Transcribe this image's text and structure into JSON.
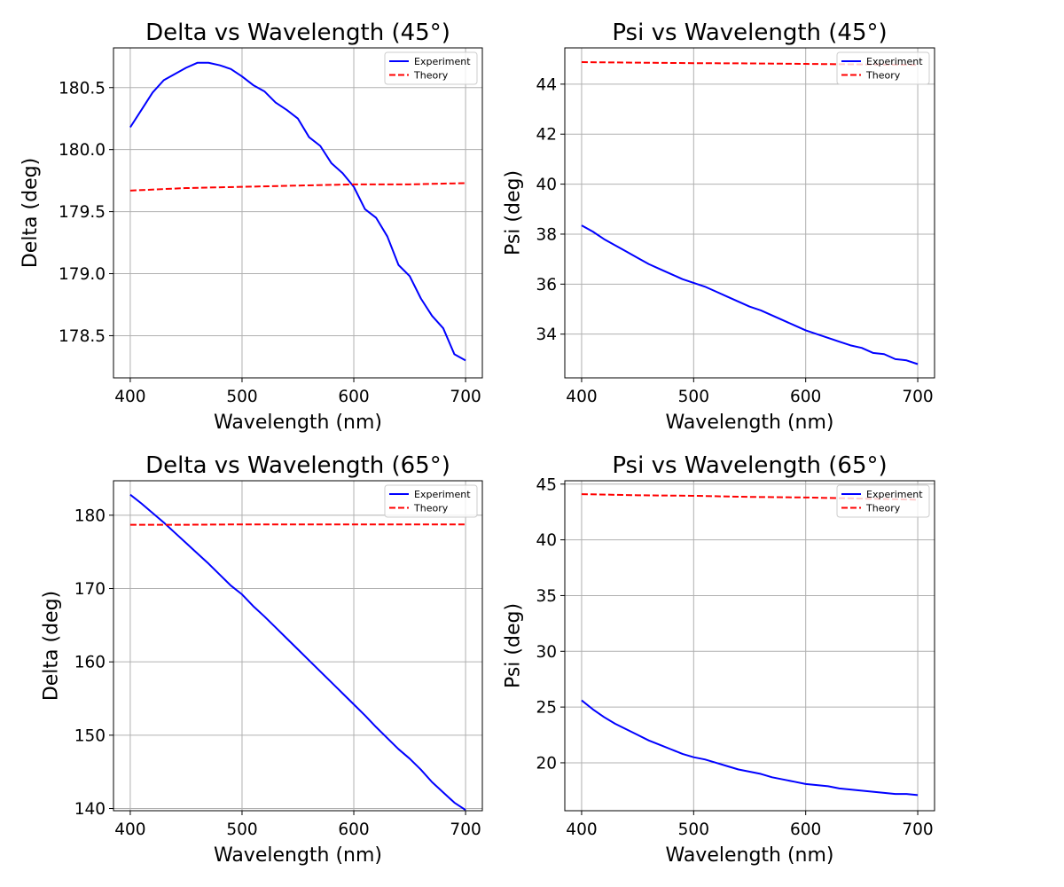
{
  "chart_data": [
    {
      "type": "line",
      "title": "Delta vs Wavelength (45°)",
      "xlabel": "Wavelength (nm)",
      "ylabel": "Delta (deg)",
      "xlim": [
        385,
        715
      ],
      "ylim": [
        178.16,
        180.82
      ],
      "xticks": [
        400,
        500,
        600,
        700
      ],
      "yticks": [
        178.5,
        179.0,
        179.5,
        180.0,
        180.5
      ],
      "ytick_decimals": 1,
      "grid": true,
      "legend": "top-right",
      "series": [
        {
          "name": "Experiment",
          "color": "#0000ff",
          "style": "solid",
          "x": [
            400,
            410,
            420,
            430,
            440,
            450,
            460,
            470,
            480,
            490,
            500,
            510,
            520,
            530,
            540,
            550,
            560,
            570,
            580,
            590,
            600,
            610,
            620,
            630,
            640,
            650,
            660,
            670,
            680,
            690,
            700
          ],
          "y": [
            180.18,
            180.32,
            180.46,
            180.56,
            180.61,
            180.66,
            180.7,
            180.7,
            180.68,
            180.65,
            180.59,
            180.52,
            180.47,
            180.38,
            180.32,
            180.25,
            180.1,
            180.03,
            179.89,
            179.81,
            179.7,
            179.52,
            179.45,
            179.3,
            179.07,
            178.98,
            178.8,
            178.66,
            178.56,
            178.35,
            178.3
          ]
        },
        {
          "name": "Theory",
          "color": "#ff0000",
          "style": "dashed",
          "x": [
            400,
            450,
            500,
            550,
            600,
            650,
            700
          ],
          "y": [
            179.67,
            179.69,
            179.7,
            179.71,
            179.72,
            179.72,
            179.73
          ]
        }
      ]
    },
    {
      "type": "line",
      "title": "Psi vs Wavelength (45°)",
      "xlabel": "Wavelength (nm)",
      "ylabel": "Psi (deg)",
      "xlim": [
        385,
        715
      ],
      "ylim": [
        32.25,
        45.45
      ],
      "xticks": [
        400,
        500,
        600,
        700
      ],
      "yticks": [
        34,
        36,
        38,
        40,
        42,
        44
      ],
      "ytick_decimals": 0,
      "grid": true,
      "legend": "top-right",
      "series": [
        {
          "name": "Experiment",
          "color": "#0000ff",
          "style": "solid",
          "x": [
            400,
            410,
            420,
            430,
            440,
            450,
            460,
            470,
            480,
            490,
            500,
            510,
            520,
            530,
            540,
            550,
            560,
            570,
            580,
            590,
            600,
            610,
            620,
            630,
            640,
            650,
            660,
            670,
            680,
            690,
            700
          ],
          "y": [
            38.35,
            38.1,
            37.8,
            37.55,
            37.3,
            37.05,
            36.8,
            36.6,
            36.4,
            36.2,
            36.05,
            35.9,
            35.7,
            35.5,
            35.3,
            35.1,
            34.95,
            34.75,
            34.55,
            34.35,
            34.15,
            34.0,
            33.85,
            33.7,
            33.55,
            33.45,
            33.25,
            33.2,
            33.0,
            32.95,
            32.8
          ]
        },
        {
          "name": "Theory",
          "color": "#ff0000",
          "style": "dashed",
          "x": [
            400,
            450,
            500,
            550,
            600,
            650,
            700
          ],
          "y": [
            44.88,
            44.86,
            44.84,
            44.83,
            44.81,
            44.79,
            44.77
          ]
        }
      ]
    },
    {
      "type": "line",
      "title": "Delta vs Wavelength (65°)",
      "xlabel": "Wavelength (nm)",
      "ylabel": "Delta (deg)",
      "xlim": [
        385,
        715
      ],
      "ylim": [
        139.7,
        184.7
      ],
      "xticks": [
        400,
        500,
        600,
        700
      ],
      "yticks": [
        140,
        150,
        160,
        170,
        180
      ],
      "ytick_decimals": 0,
      "grid": true,
      "legend": "top-right",
      "series": [
        {
          "name": "Experiment",
          "color": "#0000ff",
          "style": "solid",
          "x": [
            400,
            410,
            420,
            430,
            440,
            450,
            460,
            470,
            480,
            490,
            500,
            510,
            520,
            530,
            540,
            550,
            560,
            570,
            580,
            590,
            600,
            610,
            620,
            630,
            640,
            650,
            660,
            670,
            680,
            690,
            700
          ],
          "y": [
            182.8,
            181.6,
            180.3,
            179.0,
            177.6,
            176.2,
            174.8,
            173.4,
            171.9,
            170.4,
            169.2,
            167.6,
            166.2,
            164.7,
            163.2,
            161.7,
            160.2,
            158.7,
            157.2,
            155.7,
            154.2,
            152.7,
            151.1,
            149.6,
            148.1,
            146.8,
            145.3,
            143.6,
            142.2,
            140.8,
            139.8
          ]
        },
        {
          "name": "Theory",
          "color": "#ff0000",
          "style": "dashed",
          "x": [
            400,
            450,
            500,
            550,
            600,
            650,
            700
          ],
          "y": [
            178.7,
            178.7,
            178.75,
            178.75,
            178.75,
            178.75,
            178.75
          ]
        }
      ]
    },
    {
      "type": "line",
      "title": "Psi vs Wavelength (65°)",
      "xlabel": "Wavelength (nm)",
      "ylabel": "Psi (deg)",
      "xlim": [
        385,
        715
      ],
      "ylim": [
        15.7,
        45.3
      ],
      "xticks": [
        400,
        500,
        600,
        700
      ],
      "yticks": [
        20,
        25,
        30,
        35,
        40,
        45
      ],
      "ytick_decimals": 0,
      "grid": true,
      "legend": "top-right",
      "series": [
        {
          "name": "Experiment",
          "color": "#0000ff",
          "style": "solid",
          "x": [
            400,
            410,
            420,
            430,
            440,
            450,
            460,
            470,
            480,
            490,
            500,
            510,
            520,
            530,
            540,
            550,
            560,
            570,
            580,
            590,
            600,
            610,
            620,
            630,
            640,
            650,
            660,
            670,
            680,
            690,
            700
          ],
          "y": [
            25.6,
            24.8,
            24.1,
            23.5,
            23.0,
            22.5,
            22.0,
            21.6,
            21.2,
            20.8,
            20.5,
            20.3,
            20.0,
            19.7,
            19.4,
            19.2,
            19.0,
            18.7,
            18.5,
            18.3,
            18.1,
            18.0,
            17.9,
            17.7,
            17.6,
            17.5,
            17.4,
            17.3,
            17.2,
            17.2,
            17.1
          ]
        },
        {
          "name": "Theory",
          "color": "#ff0000",
          "style": "dashed",
          "x": [
            400,
            450,
            500,
            550,
            600,
            650,
            700
          ],
          "y": [
            44.1,
            44.0,
            43.95,
            43.85,
            43.8,
            43.7,
            43.6
          ]
        }
      ]
    }
  ]
}
